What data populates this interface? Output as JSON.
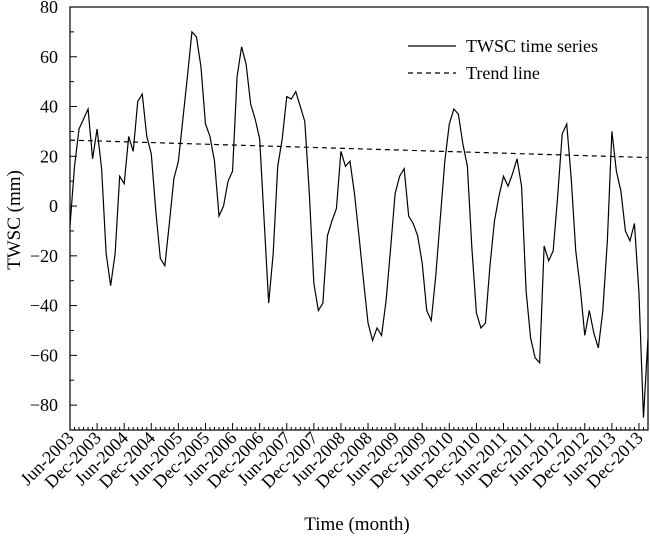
{
  "chart_data": {
    "type": "line",
    "xlabel": "Time (month)",
    "ylabel": "TWSC (mm)",
    "ylim": [
      -90,
      80
    ],
    "y_ticks": [
      -80,
      -60,
      -40,
      -20,
      0,
      20,
      40,
      60,
      80
    ],
    "x_tick_labels": [
      "Jun-2003",
      "Dec-2003",
      "Jun-2004",
      "Dec-2004",
      "Jun-2005",
      "Dec-2005",
      "Jun-2006",
      "Dec-2006",
      "Jun-2007",
      "Dec-2007",
      "Jun-2008",
      "Dec-2008",
      "Jun-2009",
      "Dec-2009",
      "Jun-2010",
      "Dec-2010",
      "Jun-2011",
      "Dec-2011",
      "Jun-2012",
      "Dec-2012",
      "Jun-2013",
      "Dec-2013"
    ],
    "grid": false,
    "legend_position": "top-right",
    "series": [
      {
        "name": "TWSC time series",
        "style": "solid",
        "color": "#000000",
        "values": [
          -8,
          16,
          31,
          35,
          39,
          19,
          31,
          15,
          -19,
          -32,
          -19,
          12,
          9,
          28,
          22,
          42,
          45,
          28,
          21,
          -2,
          -21,
          -24,
          -7,
          11,
          18,
          35,
          52,
          70,
          68,
          56,
          33,
          28,
          18,
          -4,
          0,
          10,
          14,
          52,
          64,
          57,
          41,
          35,
          27,
          -6,
          -39,
          -19,
          16,
          27,
          44,
          43,
          46,
          40,
          34,
          5,
          -31,
          -42,
          -39,
          -12,
          -6,
          -1,
          22,
          16,
          18,
          5,
          -12,
          -30,
          -47,
          -54,
          -49,
          -52,
          -38,
          -17,
          5,
          12,
          15,
          -4,
          -7,
          -12,
          -23,
          -42,
          -46,
          -28,
          -5,
          18,
          33,
          39,
          37,
          25,
          16,
          -17,
          -43,
          -49,
          -47,
          -24,
          -6,
          4,
          12,
          8,
          13,
          19,
          8,
          -34,
          -53,
          -61,
          -63,
          -16,
          -22,
          -18,
          4,
          29,
          33,
          11,
          -18,
          -33,
          -52,
          -42,
          -51,
          -57,
          -42,
          -14,
          30,
          14,
          6,
          -10,
          -14,
          -7,
          -35,
          -85,
          -53
        ],
        "start_label": "Jun-2003",
        "interval": "month"
      },
      {
        "name": "Trend line",
        "style": "dashed",
        "color": "#000000",
        "start_value": 26.5,
        "end_value": 19.5
      }
    ]
  }
}
